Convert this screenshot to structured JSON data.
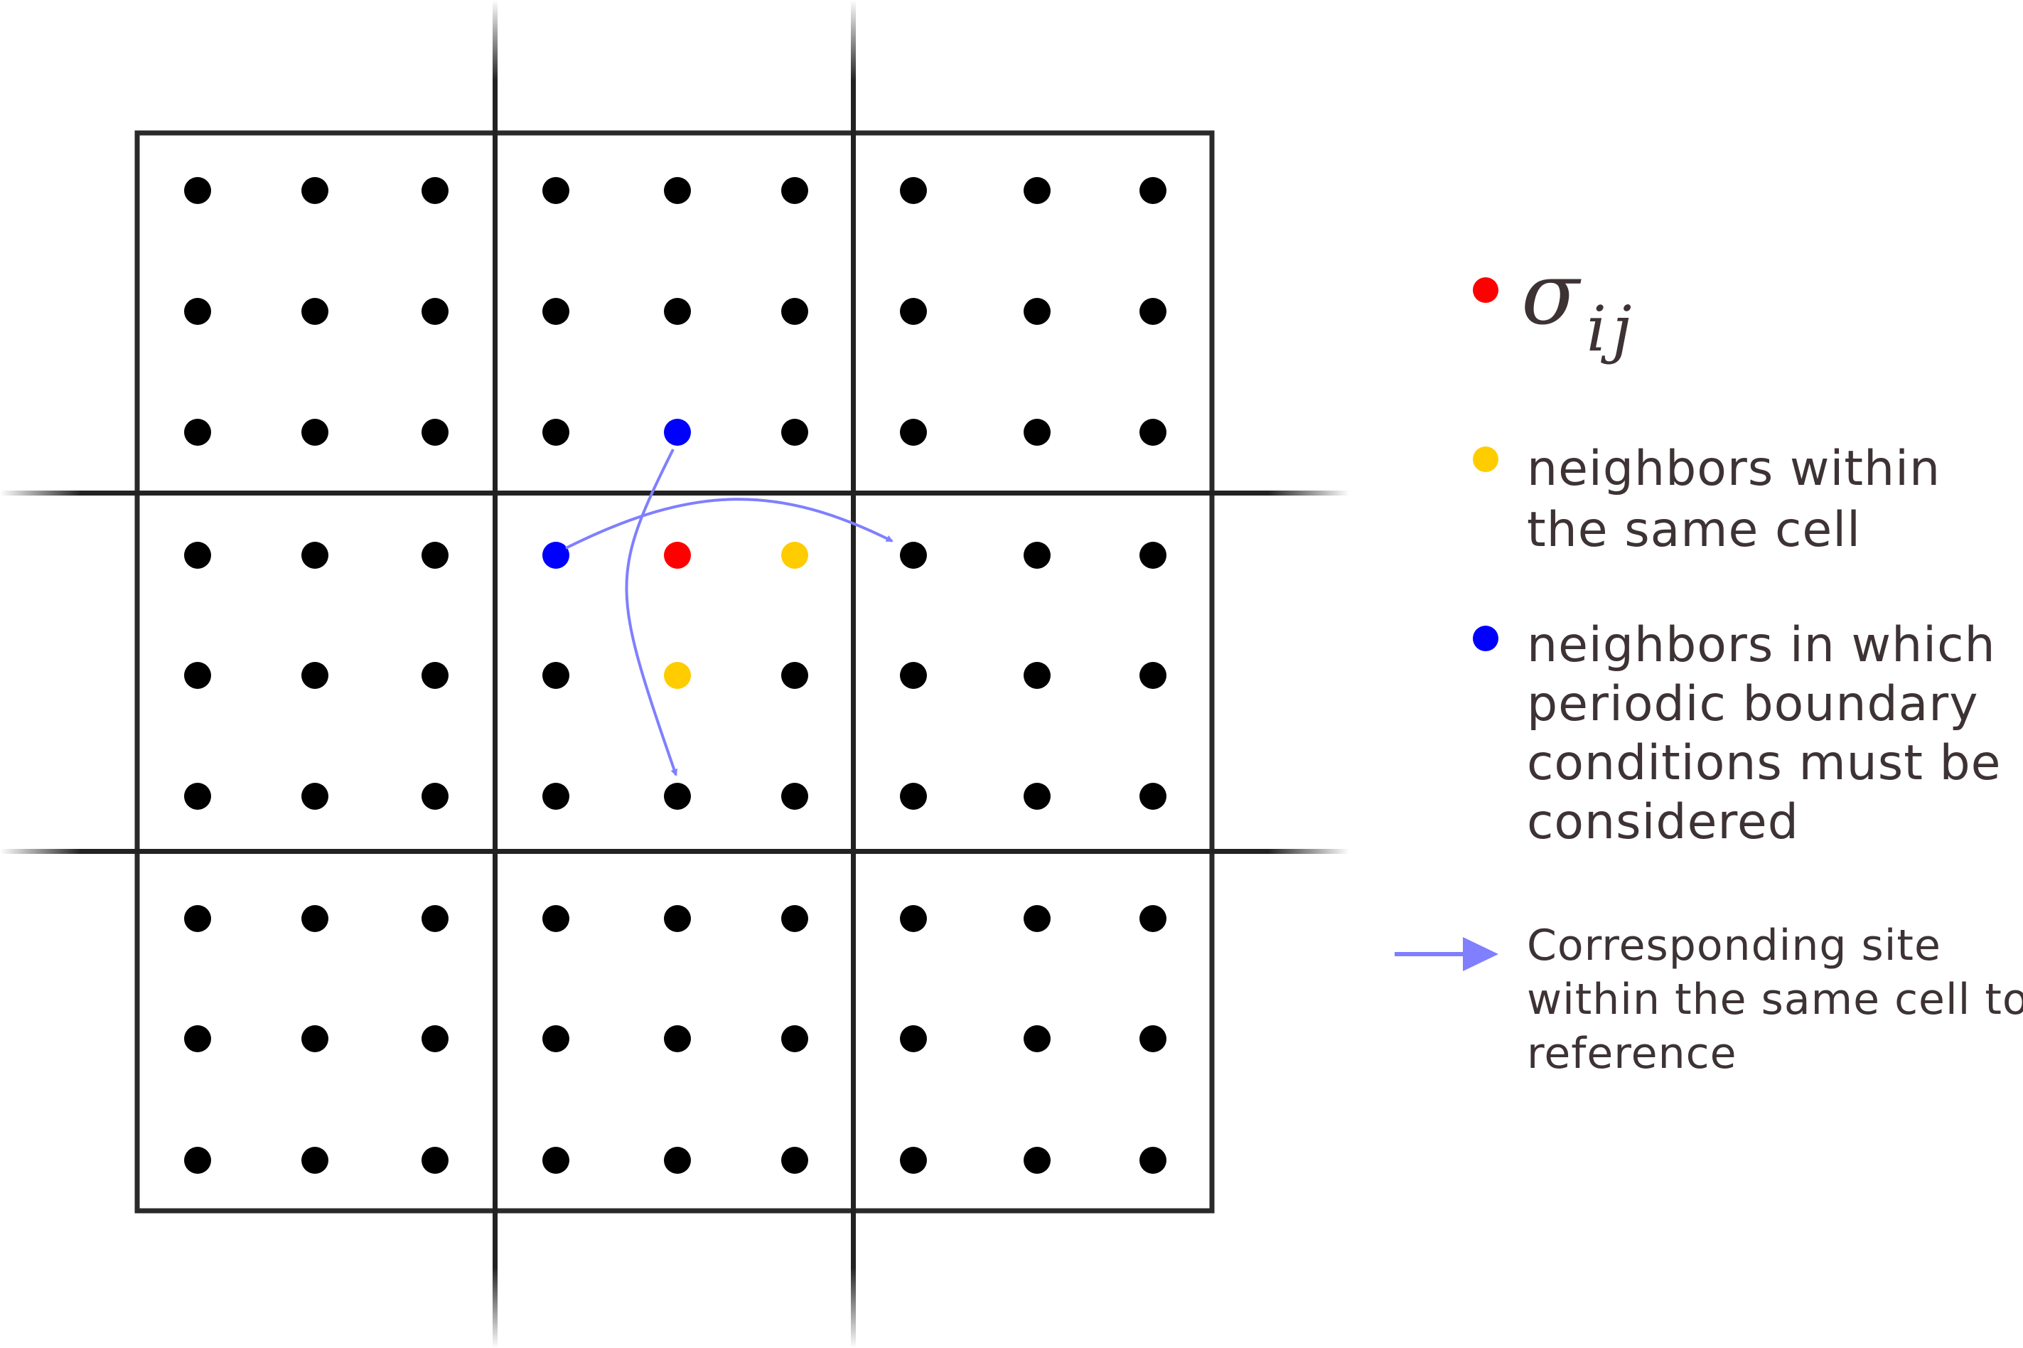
{
  "legend": {
    "sigma": {
      "symbol": "σ",
      "subscript": "ij",
      "color": "#ff0000"
    },
    "same_cell": {
      "lines": [
        "neighbors within",
        "the same cell"
      ],
      "color": "#ffcc00"
    },
    "periodic": {
      "lines": [
        "neighbors in which",
        "periodic boundary",
        "conditions must be",
        "considered"
      ],
      "color": "#0000ff"
    },
    "arrow": {
      "lines": [
        "Corresponding site",
        "within the same cell to",
        "reference"
      ],
      "color": "#7f7fff"
    }
  },
  "lattice": {
    "blocks_per_side": 3,
    "sites_per_block_side": 3,
    "default_site_color": "#000000",
    "highlighted_sites": [
      {
        "row": 3,
        "col": 4,
        "role": "sigma"
      },
      {
        "row": 3,
        "col": 5,
        "role": "same_cell"
      },
      {
        "row": 4,
        "col": 4,
        "role": "same_cell"
      },
      {
        "row": 3,
        "col": 3,
        "role": "periodic"
      },
      {
        "row": 2,
        "col": 4,
        "role": "periodic"
      }
    ],
    "mappings": [
      {
        "from": {
          "row": 3,
          "col": 3
        },
        "to": {
          "row": 3,
          "col": 6
        }
      },
      {
        "from": {
          "row": 2,
          "col": 4
        },
        "to": {
          "row": 5,
          "col": 4
        }
      }
    ]
  }
}
